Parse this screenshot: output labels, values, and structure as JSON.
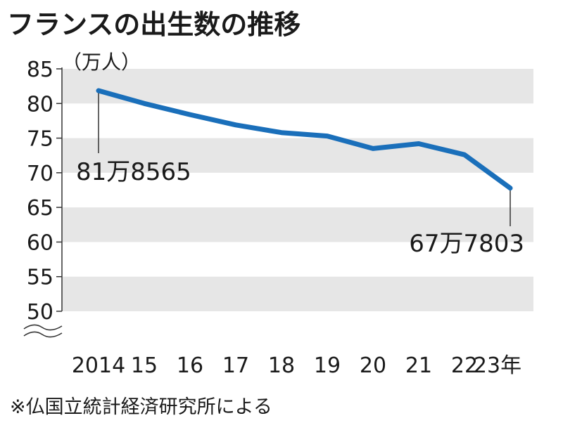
{
  "chart_data": {
    "type": "line",
    "title": "フランスの出生数の推移",
    "unit_label": "（万人）",
    "x": [
      "2014",
      "15",
      "16",
      "17",
      "18",
      "19",
      "20",
      "21",
      "22",
      "23年"
    ],
    "series": [
      {
        "values": [
          81.86,
          80.0,
          78.4,
          76.9,
          75.8,
          75.3,
          73.5,
          74.2,
          72.6,
          67.78
        ]
      }
    ],
    "ylim": [
      50,
      85
    ],
    "yticks": [
      "85",
      "80",
      "75",
      "70",
      "65",
      "60",
      "55",
      "50"
    ],
    "axis_break": true,
    "grid_bands": true,
    "annotations": [
      {
        "text": "81万8565",
        "x": "2014"
      },
      {
        "text": "67万7803",
        "x": "23年"
      }
    ],
    "source": "※仏国立統計経済研究所による",
    "colors": {
      "line": "#1a6fba",
      "band": "#e6e6e6",
      "text": "#1a1a1a"
    }
  }
}
